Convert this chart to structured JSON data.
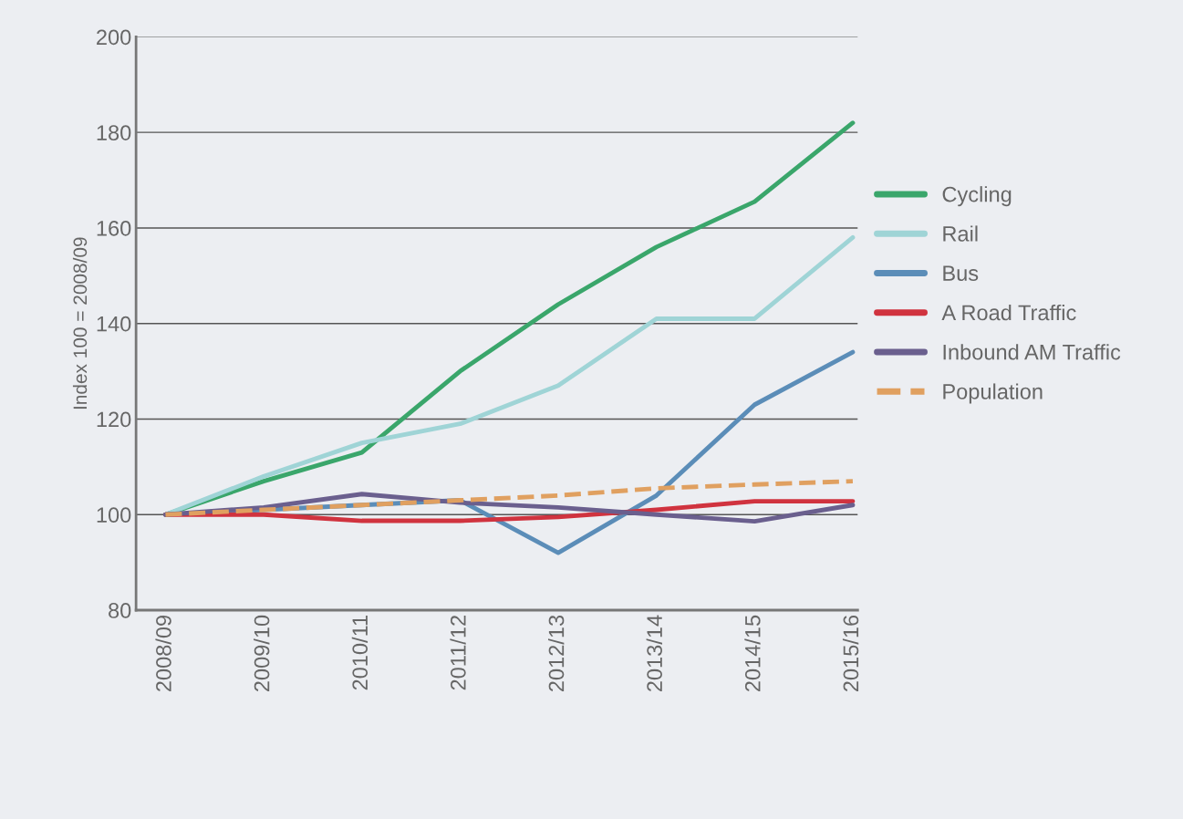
{
  "chart_data": {
    "type": "line",
    "ylabel": "Index 100 = 2008/09",
    "categories": [
      "2008/09",
      "2009/10",
      "2010/11",
      "2011/12",
      "2012/13",
      "2013/14",
      "2014/15",
      "2015/16"
    ],
    "series": [
      {
        "name": "Cycling",
        "color": "#3aa66b",
        "values": [
          100,
          107,
          113,
          130,
          144,
          156,
          165.5,
          182
        ]
      },
      {
        "name": "Rail",
        "color": "#9fd4d6",
        "values": [
          100,
          108,
          115,
          119,
          127,
          141,
          141,
          158
        ]
      },
      {
        "name": "Bus",
        "color": "#5b8db8",
        "values": [
          100,
          101,
          null,
          103,
          92,
          104,
          123,
          134
        ]
      },
      {
        "name": "A Road Traffic",
        "color": "#d0333f",
        "values": [
          100,
          100,
          98.7,
          98.7,
          99.5,
          101,
          102.8,
          102.8
        ]
      },
      {
        "name": "Inbound AM Traffic",
        "color": "#6a5f8e",
        "values": [
          100,
          101.5,
          104.3,
          102.5,
          101.5,
          100,
          98.6,
          102
        ]
      },
      {
        "name": "Population",
        "color": "#e0a060",
        "line_style": "dashed",
        "values": [
          100,
          101,
          102,
          103,
          104,
          105.5,
          106.3,
          107
        ]
      }
    ],
    "ylim": [
      80,
      200
    ],
    "yticks": [
      80,
      100,
      120,
      140,
      160,
      180,
      200
    ],
    "grid": "y",
    "legend": "right"
  }
}
